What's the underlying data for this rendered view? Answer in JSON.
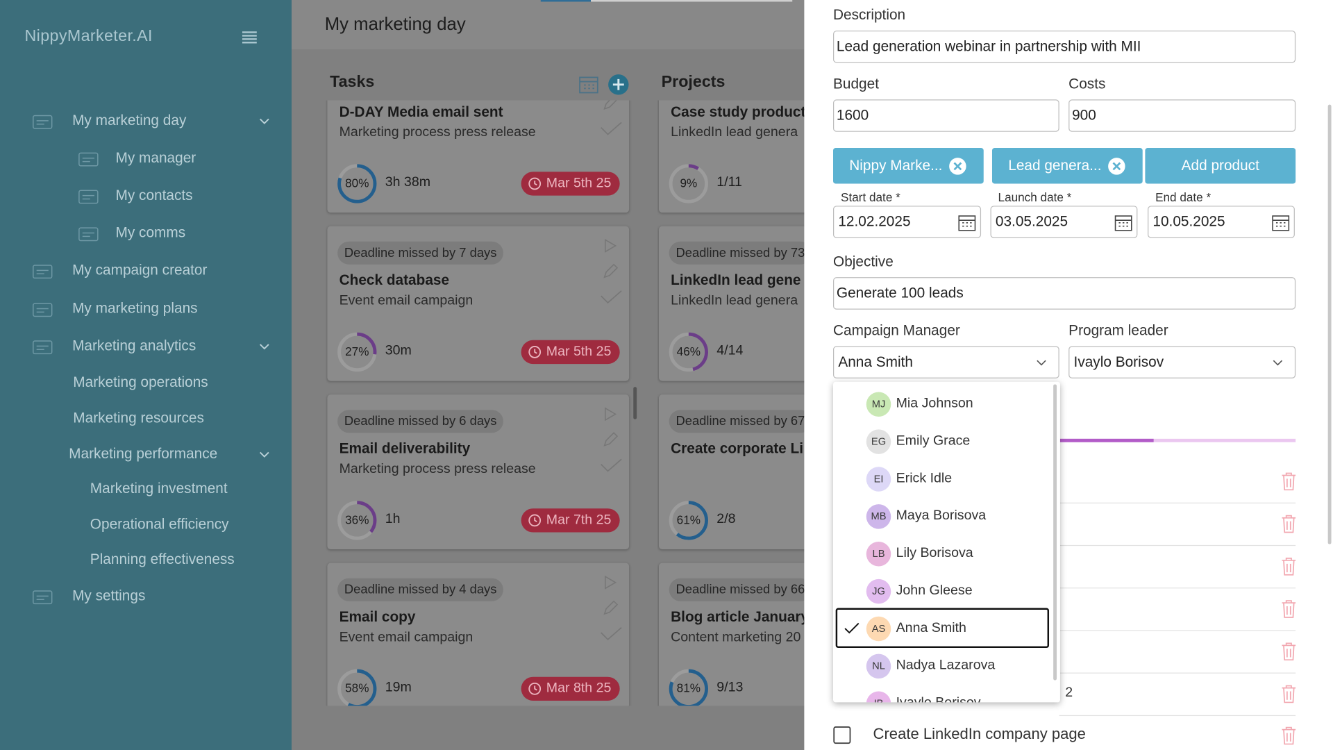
{
  "sidebar": {
    "brand": "NippyMarketer.AI",
    "nav": [
      {
        "label": "My marketing day",
        "level": 0,
        "expandable": true
      },
      {
        "label": "My manager",
        "level": 1
      },
      {
        "label": "My contacts",
        "level": 1
      },
      {
        "label": "My comms",
        "level": 1
      },
      {
        "label": "My campaign creator",
        "level": 0
      },
      {
        "label": "My marketing plans",
        "level": 0
      },
      {
        "label": "Marketing analytics",
        "level": 0,
        "expandable": true
      },
      {
        "label": "Marketing operations",
        "level": 2
      },
      {
        "label": "Marketing resources",
        "level": 2
      },
      {
        "label": "Marketing performance",
        "level": 2,
        "expandable": true
      },
      {
        "label": "Marketing investment",
        "level": 3
      },
      {
        "label": "Operational efficiency",
        "level": 3
      },
      {
        "label": "Planning effectiveness",
        "level": 3
      },
      {
        "label": "My settings",
        "level": 0
      }
    ]
  },
  "main": {
    "title": "My marketing day",
    "tasks": {
      "heading": "Tasks",
      "cards": [
        {
          "title": "D-DAY Media email sent",
          "subtitle": "Marketing process press release",
          "progress": 80,
          "progress_label": "80%",
          "time": "3h 38m",
          "due": "Mar 5th 25"
        },
        {
          "deadline": "Deadline missed by 7 days",
          "title": "Check database",
          "subtitle": "Event email campaign",
          "progress": 27,
          "progress_label": "27%",
          "time": "30m",
          "due": "Mar 5th 25"
        },
        {
          "deadline": "Deadline missed by 6 days",
          "title": "Email deliverability",
          "subtitle": "Marketing process press release",
          "progress": 36,
          "progress_label": "36%",
          "time": "1h",
          "due": "Mar 7th 25"
        },
        {
          "deadline": "Deadline missed by 4 days",
          "title": "Email copy",
          "subtitle": "Event email campaign",
          "progress": 58,
          "progress_label": "58%",
          "time": "19m",
          "due": "Mar 8th 25"
        }
      ]
    },
    "projects": {
      "heading": "Projects",
      "cards": [
        {
          "title": "Case study product",
          "subtitle": "LinkedIn lead genera",
          "progress": 9,
          "progress_label": "9%",
          "count": "1/11"
        },
        {
          "deadline": "Deadline missed by 73",
          "title": "LinkedIn lead gene",
          "subtitle": "LinkedIn lead genera",
          "progress": 46,
          "progress_label": "46%",
          "count": "4/14"
        },
        {
          "deadline": "Deadline missed by 67",
          "title": "Create corporate Li",
          "progress": 61,
          "progress_label": "61%",
          "count": "2/8"
        },
        {
          "deadline": "Deadline missed by 66",
          "title": "Blog article January",
          "subtitle": "Content marketing 20",
          "progress": 81,
          "progress_label": "81%",
          "count": "9/13"
        }
      ]
    }
  },
  "panel": {
    "description": {
      "label": "Description",
      "value": "Lead generation webinar in partnership with MII"
    },
    "budget": {
      "label": "Budget",
      "value": 1600
    },
    "costs": {
      "label": "Costs",
      "value": 900
    },
    "chips": [
      "Nippy Marke...",
      "Lead genera..."
    ],
    "add_product": "Add product",
    "dates": [
      {
        "label": "Start date *",
        "value": "12.02.2025"
      },
      {
        "label": "Launch date *",
        "value": "03.05.2025"
      },
      {
        "label": "End date *",
        "value": "10.05.2025"
      }
    ],
    "objective": {
      "label": "Objective",
      "value": "Generate 100 leads"
    },
    "campaign_manager": {
      "label": "Campaign Manager",
      "value": "Anna Smith"
    },
    "program_leader": {
      "label": "Program leader",
      "value": "Ivaylo Borisov"
    },
    "options": [
      {
        "initials": "MJ",
        "name": "Mia Johnson",
        "color": "#c9e8b4"
      },
      {
        "initials": "EG",
        "name": "Emily Grace",
        "color": "#e2e2e2"
      },
      {
        "initials": "EI",
        "name": "Erick Idle",
        "color": "#ddd8f7"
      },
      {
        "initials": "MB",
        "name": "Maya Borisova",
        "color": "#cdb6ea"
      },
      {
        "initials": "LB",
        "name": "Lily Borisova",
        "color": "#e8b6dc"
      },
      {
        "initials": "JG",
        "name": "John Gleese",
        "color": "#e2bcef"
      },
      {
        "initials": "AS",
        "name": "Anna Smith",
        "color": "#fdd9b2",
        "selected": true
      },
      {
        "initials": "NL",
        "name": "Nadya Lazarova",
        "color": "#d5c6ee"
      },
      {
        "initials": "IB",
        "name": "Ivaylo Borisov",
        "color": "#e8b6ea"
      }
    ],
    "row_fragment": "2",
    "checklist_item": "Create LinkedIn company page"
  }
}
